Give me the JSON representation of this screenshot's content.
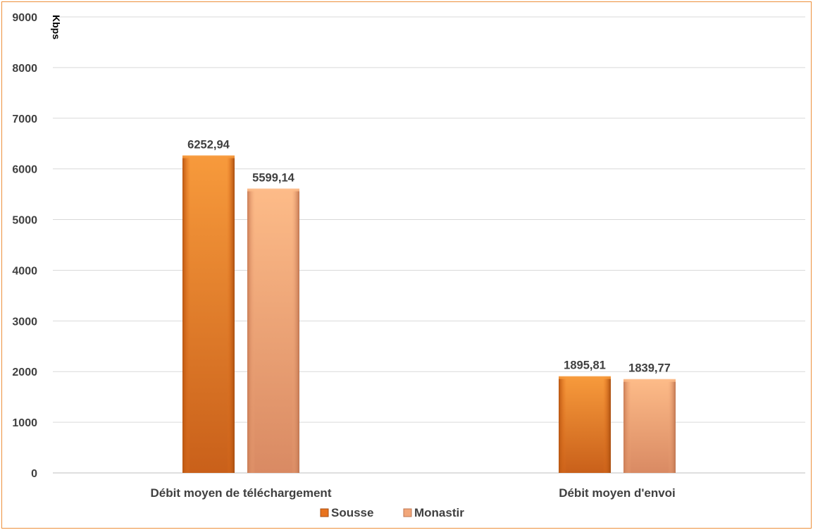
{
  "chart_data": {
    "type": "bar",
    "title": "",
    "xlabel": "",
    "ylabel": "Kbps",
    "ylim": [
      0,
      9000
    ],
    "yticks": [
      0,
      1000,
      2000,
      3000,
      4000,
      5000,
      6000,
      7000,
      8000,
      9000
    ],
    "grid": true,
    "legend_position": "bottom",
    "categories": [
      "Débit moyen de téléchargement",
      "Débit moyen d'envoi"
    ],
    "series": [
      {
        "name": "Sousse",
        "values": [
          6252.94,
          1895.81
        ],
        "labels": [
          "6252,94",
          "1895,81"
        ],
        "color": "#E8731E",
        "color_light": "#F79A3C",
        "color_dark": "#C9601A"
      },
      {
        "name": "Monastir",
        "values": [
          5599.14,
          1839.77
        ],
        "labels": [
          "5599,14",
          "1839,77"
        ],
        "color": "#F2A77A",
        "color_light": "#FDBB88",
        "color_dark": "#D98A63"
      }
    ],
    "colors": {
      "border": "#ED8F3A",
      "grid": "#D9D9D9",
      "text": "#404040"
    }
  }
}
